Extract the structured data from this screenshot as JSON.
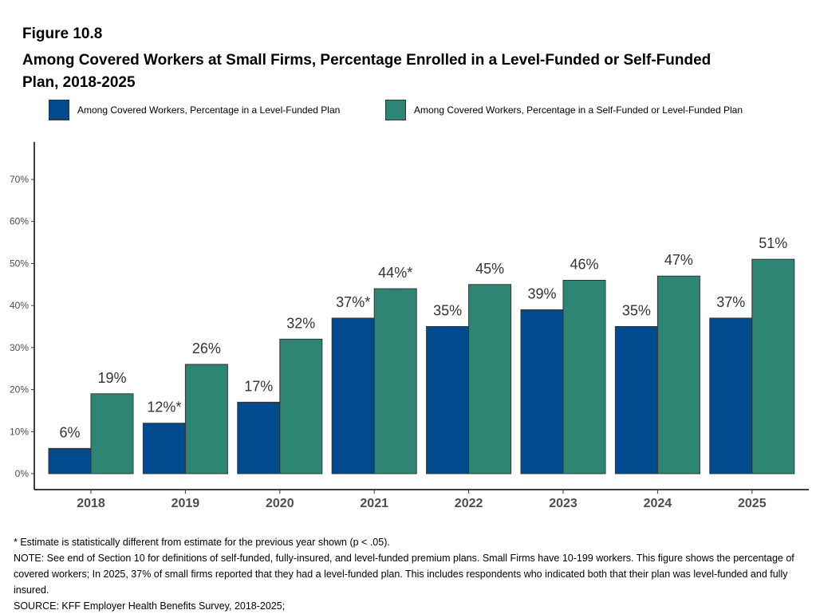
{
  "figure_label": "Figure 10.8",
  "chart_data": {
    "type": "bar",
    "title": "Among Covered Workers at Small Firms, Percentage Enrolled in a Level-Funded or Self-Funded Plan, 2018-2025",
    "categories": [
      "2018",
      "2019",
      "2020",
      "2021",
      "2022",
      "2023",
      "2024",
      "2025"
    ],
    "series": [
      {
        "name": "Among Covered Workers, Percentage in a Level-Funded Plan",
        "color": "#004b8d",
        "values": [
          6,
          12,
          17,
          37,
          35,
          39,
          35,
          37
        ],
        "labels": [
          "6%",
          "12%*",
          "17%",
          "37%*",
          "35%",
          "39%",
          "35%",
          "37%"
        ]
      },
      {
        "name": "Among Covered Workers, Percentage in a Self-Funded or Level-Funded Plan",
        "color": "#2e8574",
        "values": [
          19,
          26,
          32,
          44,
          45,
          46,
          47,
          51
        ],
        "labels": [
          "19%",
          "26%",
          "32%",
          "44%*",
          "45%",
          "46%",
          "47%",
          "51%"
        ]
      }
    ],
    "ylim": [
      0,
      79
    ],
    "yticks": [
      "0%",
      "10%",
      "20%",
      "30%",
      "40%",
      "50%",
      "60%",
      "70%"
    ],
    "ytick_values": [
      0,
      10,
      20,
      30,
      40,
      50,
      60,
      70
    ],
    "legend_position": "top",
    "grid": false
  },
  "notes": [
    "* Estimate is statistically different from estimate for the previous year shown (p < .05).",
    "NOTE: See end of Section 10 for definitions of self-funded, fully-insured, and level-funded premium plans. Small Firms have 10-199 workers. This figure shows the percentage of covered workers; In 2025, 37% of small firms reported that they had a level-funded plan. This includes respondents who indicated both that their plan was level-funded and fully insured.",
    "SOURCE: KFF Employer Health Benefits Survey, 2018-2025;"
  ]
}
